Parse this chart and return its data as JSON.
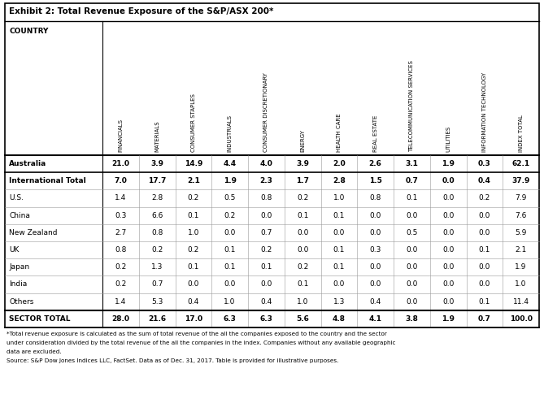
{
  "title": "Exhibit 2: Total Revenue Exposure of the S&P/ASX 200*",
  "col_headers": [
    "FINANCIALS",
    "MATERIALS",
    "CONSUMER STAPLES",
    "INDUSTRIALS",
    "CONSUMER DISCRETIONARY",
    "ENERGY",
    "HEALTH CARE",
    "REAL ESTATE",
    "TELECOMMUNICATION SERVICES",
    "UTILITIES",
    "INFORMATION TECHNOLOGY",
    "INDEX TOTAL"
  ],
  "row_headers": [
    "Australia",
    "International Total",
    "U.S.",
    "China",
    "New Zealand",
    "UK",
    "Japan",
    "India",
    "Others",
    "SECTOR TOTAL"
  ],
  "data": [
    [
      21.0,
      3.9,
      14.9,
      4.4,
      4.0,
      3.9,
      2.0,
      2.6,
      3.1,
      1.9,
      0.3,
      62.1
    ],
    [
      7.0,
      17.7,
      2.1,
      1.9,
      2.3,
      1.7,
      2.8,
      1.5,
      0.7,
      0.0,
      0.4,
      37.9
    ],
    [
      1.4,
      2.8,
      0.2,
      0.5,
      0.8,
      0.2,
      1.0,
      0.8,
      0.1,
      0.0,
      0.2,
      7.9
    ],
    [
      0.3,
      6.6,
      0.1,
      0.2,
      0.0,
      0.1,
      0.1,
      0.0,
      0.0,
      0.0,
      0.0,
      7.6
    ],
    [
      2.7,
      0.8,
      1.0,
      0.0,
      0.7,
      0.0,
      0.0,
      0.0,
      0.5,
      0.0,
      0.0,
      5.9
    ],
    [
      0.8,
      0.2,
      0.2,
      0.1,
      0.2,
      0.0,
      0.1,
      0.3,
      0.0,
      0.0,
      0.1,
      2.1
    ],
    [
      0.2,
      1.3,
      0.1,
      0.1,
      0.1,
      0.2,
      0.1,
      0.0,
      0.0,
      0.0,
      0.0,
      1.9
    ],
    [
      0.2,
      0.7,
      0.0,
      0.0,
      0.0,
      0.1,
      0.0,
      0.0,
      0.0,
      0.0,
      0.0,
      1.0
    ],
    [
      1.4,
      5.3,
      0.4,
      1.0,
      0.4,
      1.0,
      1.3,
      0.4,
      0.0,
      0.0,
      0.1,
      11.4
    ],
    [
      28.0,
      21.6,
      17.0,
      6.3,
      6.3,
      5.6,
      4.8,
      4.1,
      3.8,
      1.9,
      0.7,
      100.0
    ]
  ],
  "bold_rows": [
    0,
    1,
    9
  ],
  "footnotes": [
    "*Total revenue exposure is calculated as the sum of total revenue of the all the companies exposed to the country and the sector",
    "under consideration divided by the total revenue of the all the companies in the index. Companies without any available geographic",
    "data are excluded.",
    "Source: S&P Dow Jones Indices LLC, FactSet. Data as of Dec. 31, 2017. Table is provided for illustrative purposes."
  ],
  "bg_color": "#ffffff",
  "border_color": "#000000",
  "light_line_color": "#999999"
}
